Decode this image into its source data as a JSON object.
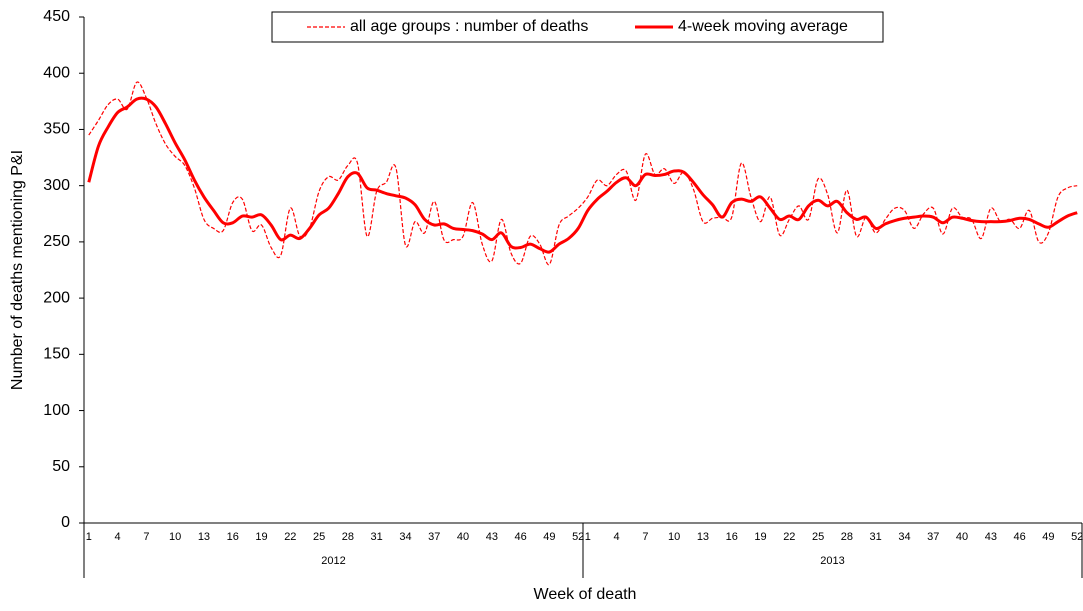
{
  "chart_data": {
    "type": "line",
    "x_label": "Week of death",
    "y_label": "Number of deaths mentioning P&I",
    "categories": [
      "1",
      null,
      null,
      "4",
      null,
      null,
      "7",
      null,
      null,
      "10",
      null,
      null,
      "13",
      null,
      null,
      "16",
      null,
      null,
      "19",
      null,
      null,
      "22",
      null,
      null,
      "25",
      null,
      null,
      "28",
      null,
      null,
      "31",
      null,
      null,
      "34",
      null,
      null,
      "37",
      null,
      null,
      "40",
      null,
      null,
      "43",
      null,
      null,
      "46",
      null,
      null,
      "49",
      null,
      null,
      "52",
      "1",
      null,
      null,
      "4",
      null,
      null,
      "7",
      null,
      null,
      "10",
      null,
      null,
      "13",
      null,
      null,
      "16",
      null,
      null,
      "19",
      null,
      null,
      "22",
      null,
      null,
      "25",
      null,
      null,
      "28",
      null,
      null,
      "31",
      null,
      null,
      "34",
      null,
      null,
      "37",
      null,
      null,
      "40",
      null,
      null,
      "43",
      null,
      null,
      "46",
      null,
      null,
      "49",
      null,
      null,
      "52"
    ],
    "x_groups": [
      "2012",
      "2013"
    ],
    "ylim": [
      0,
      450
    ],
    "yticks": [
      0,
      50,
      100,
      150,
      200,
      250,
      300,
      350,
      400,
      450
    ],
    "grid": false,
    "legend": "top",
    "series": [
      {
        "name": "all age groups : number of deaths",
        "color": "#ff0000",
        "style": "dashed",
        "values": [
          345,
          358,
          372,
          377,
          368,
          392,
          378,
          355,
          337,
          326,
          318,
          298,
          270,
          262,
          260,
          285,
          288,
          260,
          265,
          245,
          238,
          280,
          255,
          262,
          295,
          308,
          305,
          318,
          320,
          255,
          295,
          303,
          316,
          247,
          268,
          258,
          286,
          252,
          252,
          255,
          285,
          248,
          233,
          270,
          240,
          231,
          255,
          248,
          230,
          265,
          273,
          280,
          290,
          305,
          300,
          310,
          313,
          287,
          328,
          310,
          315,
          302,
          312,
          297,
          268,
          271,
          272,
          272,
          320,
          290,
          268,
          290,
          256,
          270,
          282,
          270,
          306,
          292,
          258,
          296,
          255,
          272,
          258,
          270,
          280,
          278,
          262,
          275,
          280,
          257,
          280,
          272,
          270,
          253,
          280,
          268,
          270,
          262,
          278,
          250,
          258,
          290,
          298,
          300
        ]
      },
      {
        "name": "4-week moving average",
        "color": "#ff0000",
        "style": "solid",
        "values": [
          303,
          335,
          352,
          365,
          370,
          377,
          377,
          370,
          355,
          338,
          323,
          305,
          290,
          278,
          267,
          267,
          273,
          272,
          274,
          265,
          252,
          256,
          253,
          262,
          274,
          280,
          293,
          308,
          311,
          298,
          296,
          293,
          291,
          289,
          283,
          270,
          265,
          266,
          262,
          261,
          260,
          257,
          252,
          258,
          246,
          245,
          248,
          244,
          241,
          248,
          253,
          262,
          278,
          288,
          295,
          303,
          307,
          300,
          310,
          309,
          310,
          313,
          312,
          303,
          292,
          283,
          272,
          285,
          288,
          286,
          290,
          280,
          270,
          273,
          270,
          282,
          287,
          282,
          286,
          276,
          270,
          272,
          262,
          266,
          269,
          271,
          272,
          273,
          272,
          267,
          272,
          271,
          269,
          268,
          268,
          268,
          269,
          271,
          270,
          266,
          263,
          268,
          273,
          276
        ]
      }
    ]
  }
}
